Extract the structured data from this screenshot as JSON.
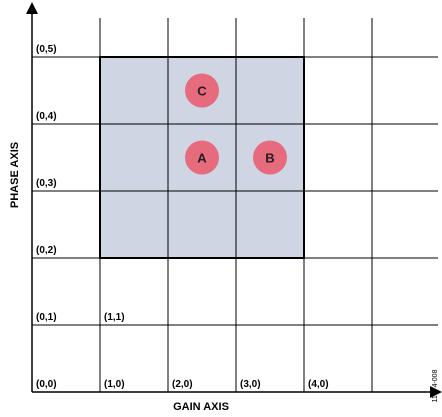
{
  "axes": {
    "x_label": "GAIN AXIS",
    "y_label": "PHASE AXIS"
  },
  "figure_id": "11774-008",
  "y_labels": [
    "(0,0)",
    "(0,1)",
    "(0,2)",
    "(0,3)",
    "(0,4)",
    "(0,5)"
  ],
  "x_labels": [
    "(1,0)",
    "(2,0)",
    "(3,0)",
    "(4,0)"
  ],
  "extra_labels": [
    "(1,1)"
  ],
  "highlight_region": {
    "gain_from": 1,
    "gain_to": 4,
    "phase_from": 2,
    "phase_to": 5
  },
  "markers": [
    {
      "label": "A",
      "gain": 2.5,
      "phase": 3.5
    },
    {
      "label": "B",
      "gain": 3.5,
      "phase": 3.5
    },
    {
      "label": "C",
      "gain": 2.5,
      "phase": 4.5
    }
  ],
  "colors": {
    "region_fill": "#d0d5e3",
    "marker_fill": "#e56b7d",
    "grid": "#000000"
  }
}
